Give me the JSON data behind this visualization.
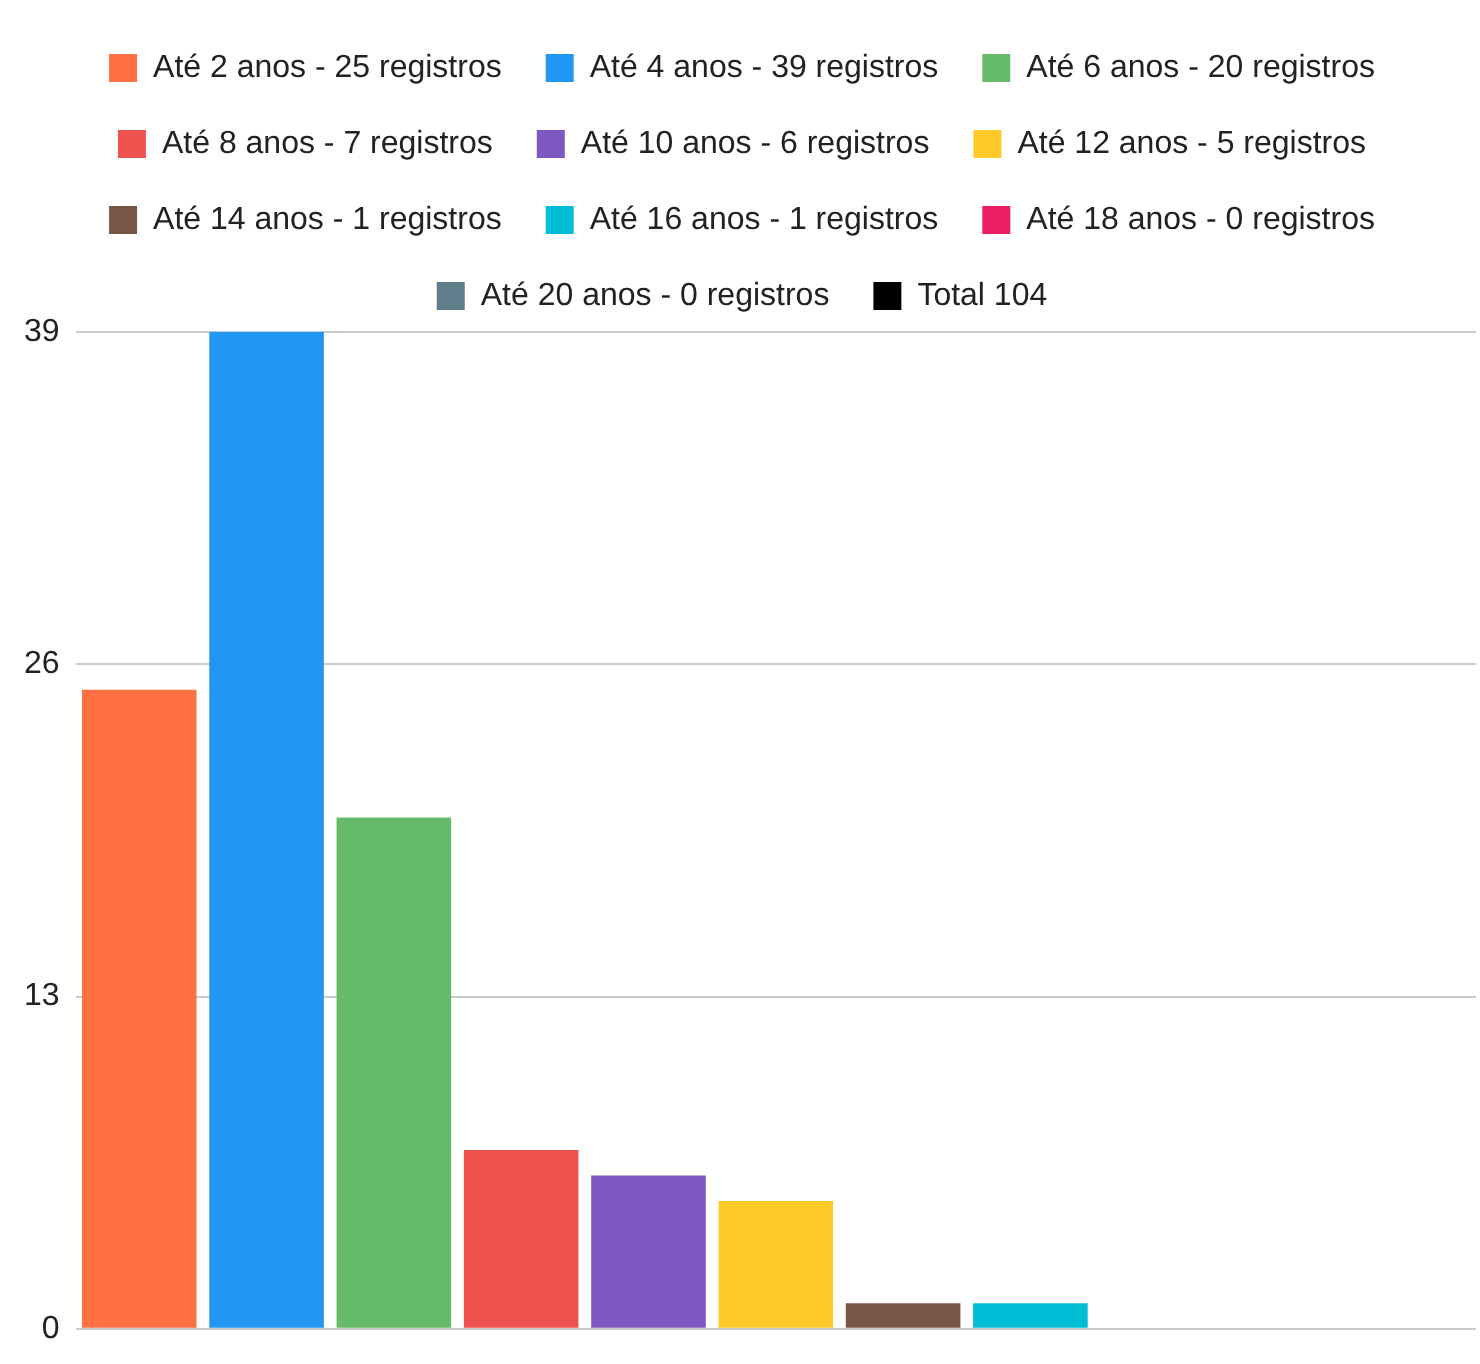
{
  "chart_data": {
    "type": "bar",
    "categories": [
      null
    ],
    "series": [
      {
        "name": "Até 2 anos - 25 registros",
        "color": "#ff7043",
        "values": [
          25
        ]
      },
      {
        "name": "Até 4 anos - 39 registros",
        "color": "#2196f3",
        "values": [
          39
        ]
      },
      {
        "name": "Até 6 anos - 20 registros",
        "color": "#66bb6a",
        "values": [
          20
        ]
      },
      {
        "name": "Até 8 anos - 7 registros",
        "color": "#ef5350",
        "values": [
          7
        ]
      },
      {
        "name": "Até 10 anos - 6 registros",
        "color": "#7e57c2",
        "values": [
          6
        ]
      },
      {
        "name": "Até 12 anos - 5 registros",
        "color": "#ffca28",
        "values": [
          5
        ]
      },
      {
        "name": "Até 14 anos - 1 registros",
        "color": "#795548",
        "values": [
          1
        ]
      },
      {
        "name": "Até 16 anos - 1 registros",
        "color": "#00bcd4",
        "values": [
          1
        ]
      },
      {
        "name": "Até 18 anos - 0 registros",
        "color": "#e91e63",
        "values": [
          0
        ]
      },
      {
        "name": "Até 20 anos - 0 registros",
        "color": "#607d8b",
        "values": [
          0
        ]
      },
      {
        "name": "Total 104",
        "color": "#000000",
        "values": [
          0
        ]
      }
    ],
    "ylim": [
      0,
      39
    ],
    "yticks": [
      0,
      13,
      26,
      39
    ],
    "grid": "y",
    "legend": "top",
    "tick_labels": "y"
  }
}
